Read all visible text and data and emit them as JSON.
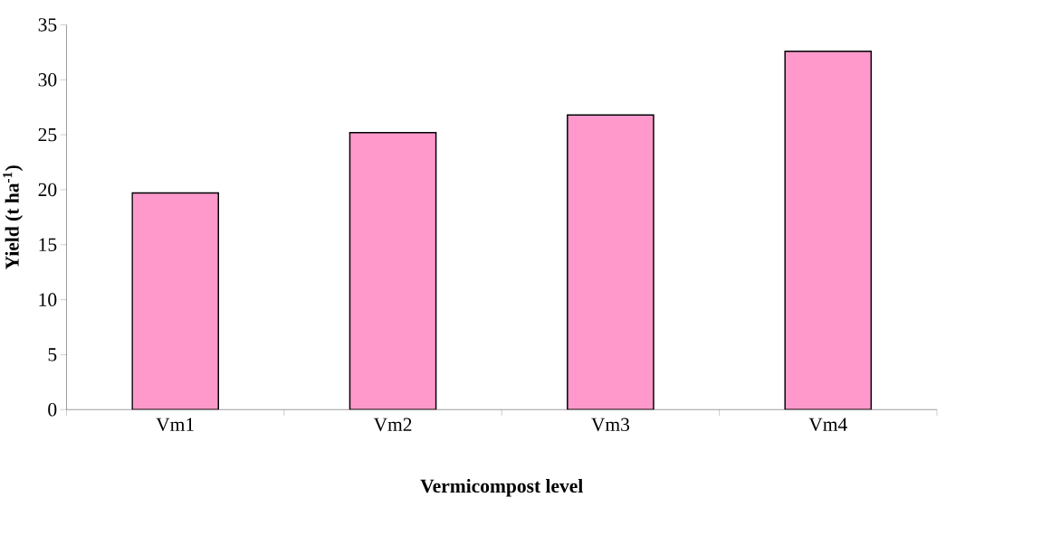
{
  "chart_data": {
    "type": "bar",
    "xlabel": "Vermicompost level",
    "ylabel": "Yield (t ha$^{-1}$)",
    "categories": [
      "Vm1",
      "Vm2",
      "Vm3",
      "Vm4"
    ],
    "values": [
      19.7,
      25.2,
      26.8,
      32.6
    ],
    "color": "#ff99cc",
    "ylim": [
      0,
      35
    ],
    "yticks": [
      0,
      5,
      10,
      15,
      20,
      25,
      30,
      35
    ]
  }
}
